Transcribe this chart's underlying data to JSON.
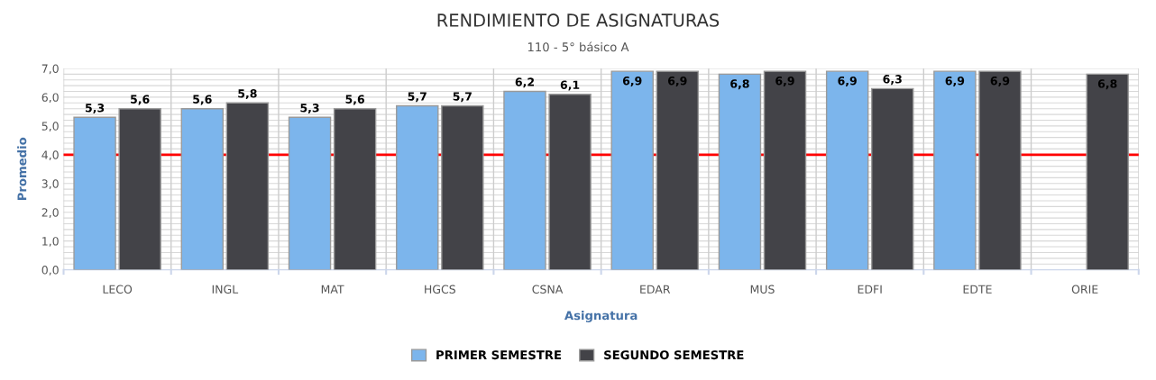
{
  "chart_data": {
    "type": "bar",
    "title": "RENDIMIENTO DE ASIGNATURAS",
    "subtitle": "110 - 5° básico A",
    "xlabel": "Asignatura",
    "ylabel": "Promedio",
    "categories": [
      "LECO",
      "INGL",
      "MAT",
      "HGCS",
      "CSNA",
      "EDAR",
      "MUS",
      "EDFI",
      "EDTE",
      "ORIE"
    ],
    "series": [
      {
        "name": "PRIMER SEMESTRE",
        "color": "#7cb5ec",
        "values": [
          5.3,
          5.6,
          5.3,
          5.7,
          6.2,
          6.9,
          6.8,
          6.9,
          6.9,
          null
        ],
        "value_labels": [
          "5,3",
          "5,6",
          "5,3",
          "5,7",
          "6,2",
          "6,9",
          "6,8",
          "6,9",
          "6,9",
          null
        ]
      },
      {
        "name": "SEGUNDO SEMESTRE",
        "color": "#434348",
        "values": [
          5.6,
          5.8,
          5.6,
          5.7,
          6.1,
          6.9,
          6.9,
          6.3,
          6.9,
          6.8
        ],
        "value_labels": [
          "5,6",
          "5,8",
          "5,6",
          "5,7",
          "6,1",
          "6,9",
          "6,9",
          "6,3",
          "6,9",
          "6,8"
        ]
      }
    ],
    "ylim": [
      0,
      7
    ],
    "yticks": [
      {
        "value": 0,
        "label": "0,0"
      },
      {
        "value": 1,
        "label": "1,0"
      },
      {
        "value": 2,
        "label": "2,0"
      },
      {
        "value": 3,
        "label": "3,0"
      },
      {
        "value": 4,
        "label": "4,0"
      },
      {
        "value": 5,
        "label": "5,0"
      },
      {
        "value": 6,
        "label": "6,0"
      },
      {
        "value": 7,
        "label": "7,0"
      }
    ],
    "ref_lines": [
      {
        "axis": "y",
        "value": 4,
        "label": null,
        "color": "#ff0000"
      }
    ],
    "grid": true,
    "legend": "bottom"
  }
}
